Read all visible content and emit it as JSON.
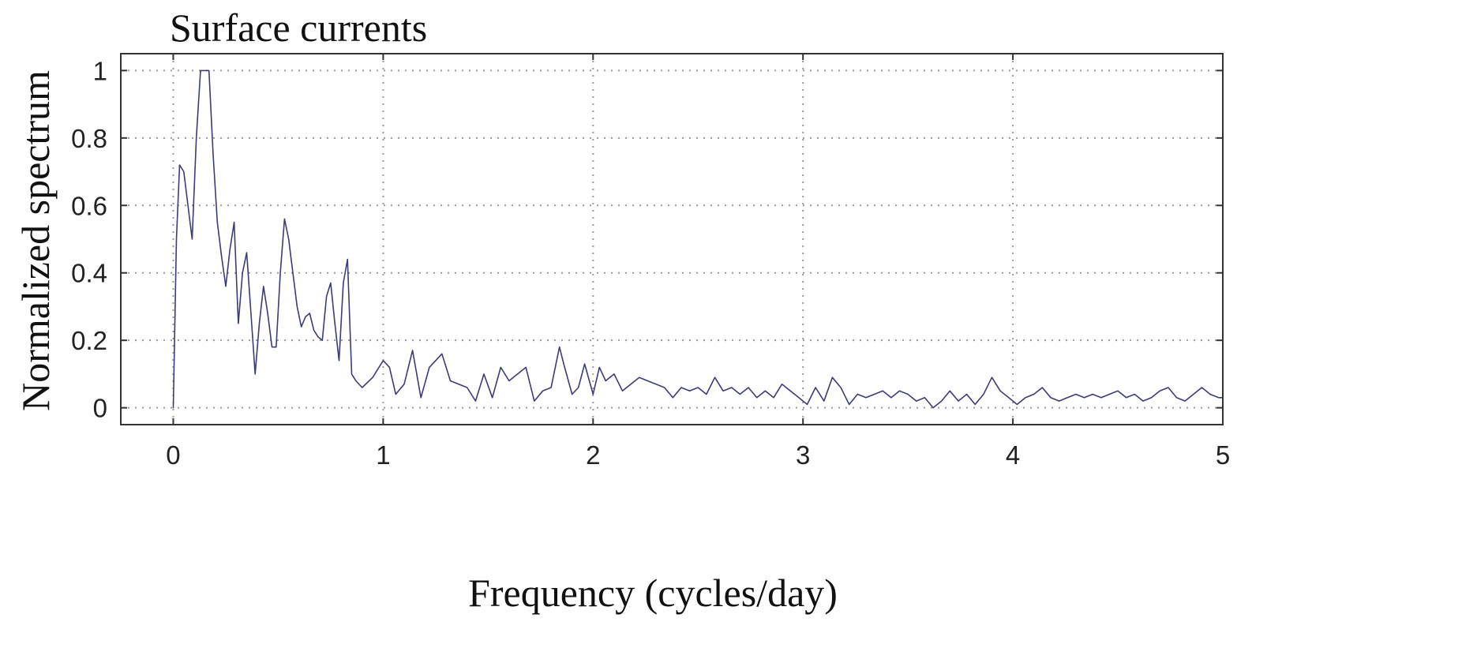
{
  "chart_data": {
    "type": "line",
    "title": "Surface currents",
    "xlabel": "Frequency (cycles/day)",
    "ylabel": "Normalized spectrum",
    "xlim": [
      -0.25,
      5
    ],
    "ylim": [
      -0.05,
      1.05
    ],
    "xticks": [
      0,
      1,
      2,
      3,
      4,
      5
    ],
    "yticks": [
      0,
      0.2,
      0.4,
      0.6,
      0.8,
      1
    ],
    "xtick_labels": [
      "0",
      "1",
      "2",
      "3",
      "4",
      "5"
    ],
    "ytick_labels": [
      "0",
      "0.2",
      "0.4",
      "0.6",
      "0.8",
      "1"
    ],
    "grid": true,
    "grid_style": "dotted",
    "legend": "none",
    "series": [
      {
        "color": "#3c3c78",
        "x": [
          0,
          0.015,
          0.03,
          0.05,
          0.07,
          0.09,
          0.11,
          0.13,
          0.15,
          0.17,
          0.19,
          0.21,
          0.23,
          0.25,
          0.27,
          0.29,
          0.31,
          0.33,
          0.35,
          0.37,
          0.39,
          0.41,
          0.43,
          0.45,
          0.47,
          0.49,
          0.51,
          0.53,
          0.55,
          0.57,
          0.59,
          0.61,
          0.63,
          0.65,
          0.67,
          0.69,
          0.71,
          0.73,
          0.75,
          0.77,
          0.79,
          0.81,
          0.83,
          0.85,
          0.87,
          0.9,
          0.95,
          1.0,
          1.03,
          1.06,
          1.1,
          1.14,
          1.18,
          1.22,
          1.28,
          1.32,
          1.36,
          1.4,
          1.44,
          1.48,
          1.52,
          1.56,
          1.6,
          1.64,
          1.68,
          1.72,
          1.76,
          1.8,
          1.84,
          1.86,
          1.9,
          1.93,
          1.96,
          2.0,
          2.03,
          2.06,
          2.1,
          2.14,
          2.18,
          2.22,
          2.26,
          2.3,
          2.34,
          2.38,
          2.42,
          2.46,
          2.5,
          2.54,
          2.58,
          2.62,
          2.66,
          2.7,
          2.74,
          2.78,
          2.82,
          2.86,
          2.9,
          2.94,
          2.98,
          3.02,
          3.06,
          3.1,
          3.14,
          3.18,
          3.22,
          3.26,
          3.3,
          3.34,
          3.38,
          3.42,
          3.46,
          3.5,
          3.54,
          3.58,
          3.62,
          3.66,
          3.7,
          3.74,
          3.78,
          3.82,
          3.86,
          3.9,
          3.94,
          3.98,
          4.02,
          4.06,
          4.1,
          4.14,
          4.18,
          4.22,
          4.26,
          4.3,
          4.34,
          4.38,
          4.42,
          4.46,
          4.5,
          4.54,
          4.58,
          4.62,
          4.66,
          4.7,
          4.74,
          4.78,
          4.82,
          4.86,
          4.9,
          4.94,
          4.98,
          5.0
        ],
        "y": [
          0.0,
          0.5,
          0.72,
          0.7,
          0.6,
          0.5,
          0.8,
          1.0,
          1.0,
          1.0,
          0.75,
          0.55,
          0.45,
          0.36,
          0.47,
          0.55,
          0.25,
          0.4,
          0.46,
          0.28,
          0.1,
          0.25,
          0.36,
          0.28,
          0.18,
          0.18,
          0.4,
          0.56,
          0.5,
          0.4,
          0.3,
          0.24,
          0.27,
          0.28,
          0.23,
          0.21,
          0.2,
          0.33,
          0.37,
          0.25,
          0.14,
          0.37,
          0.44,
          0.1,
          0.08,
          0.06,
          0.09,
          0.14,
          0.12,
          0.04,
          0.07,
          0.17,
          0.03,
          0.12,
          0.16,
          0.08,
          0.07,
          0.06,
          0.02,
          0.1,
          0.03,
          0.12,
          0.08,
          0.1,
          0.12,
          0.02,
          0.05,
          0.06,
          0.18,
          0.13,
          0.04,
          0.06,
          0.13,
          0.04,
          0.12,
          0.08,
          0.1,
          0.05,
          0.07,
          0.09,
          0.08,
          0.07,
          0.06,
          0.03,
          0.06,
          0.05,
          0.06,
          0.04,
          0.09,
          0.05,
          0.06,
          0.04,
          0.06,
          0.03,
          0.05,
          0.03,
          0.07,
          0.05,
          0.03,
          0.01,
          0.06,
          0.02,
          0.09,
          0.06,
          0.01,
          0.04,
          0.03,
          0.04,
          0.05,
          0.03,
          0.05,
          0.04,
          0.02,
          0.03,
          0.0,
          0.02,
          0.05,
          0.02,
          0.04,
          0.01,
          0.04,
          0.09,
          0.05,
          0.03,
          0.01,
          0.03,
          0.04,
          0.06,
          0.03,
          0.02,
          0.03,
          0.04,
          0.03,
          0.04,
          0.03,
          0.04,
          0.05,
          0.03,
          0.04,
          0.02,
          0.03,
          0.05,
          0.06,
          0.03,
          0.02,
          0.04,
          0.06,
          0.04,
          0.03,
          0.03
        ]
      }
    ]
  }
}
